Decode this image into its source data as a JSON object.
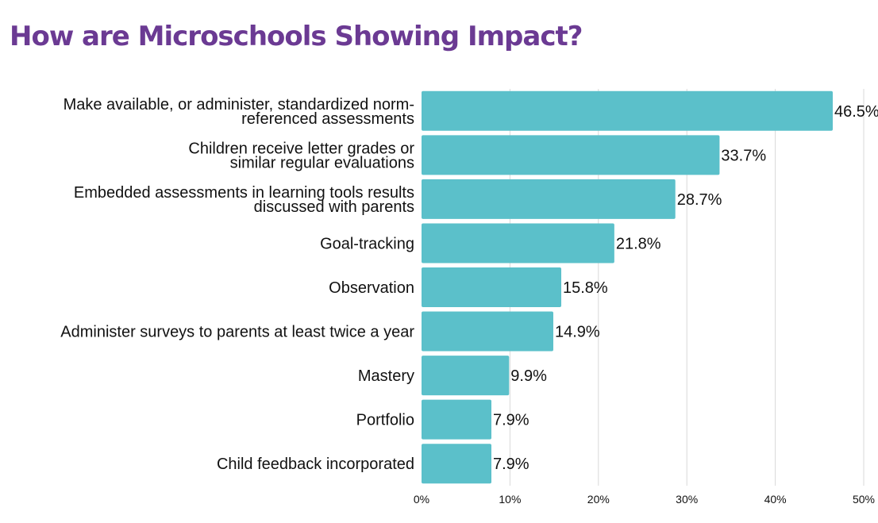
{
  "colors": {
    "title": "#6B3A93",
    "bar": "#5BC0CA",
    "grid": "#D9D9D9",
    "text": "#111111"
  },
  "chart_data": {
    "type": "bar",
    "orientation": "horizontal",
    "title": "How are Microschools Showing Impact?",
    "xlabel": "",
    "ylabel": "",
    "xlim": [
      0,
      50
    ],
    "grid": true,
    "categories": [
      [
        "Make available, or administer, standardized norm-",
        "referenced assessments"
      ],
      [
        "Children receive letter grades or",
        "similar regular evaluations"
      ],
      [
        "Embedded assessments in learning tools results",
        "discussed with parents"
      ],
      [
        "Goal-tracking"
      ],
      [
        "Observation"
      ],
      [
        "Administer surveys to parents at least twice a year"
      ],
      [
        "Mastery"
      ],
      [
        "Portfolio"
      ],
      [
        "Child feedback incorporated"
      ]
    ],
    "values": [
      46.5,
      33.7,
      28.7,
      21.8,
      15.8,
      14.9,
      9.9,
      7.9,
      7.9
    ],
    "value_labels": [
      "46.5%",
      "33.7%",
      "28.7%",
      "21.8%",
      "15.8%",
      "14.9%",
      "9.9%",
      "7.9%",
      "7.9%"
    ],
    "ticks": [
      0,
      10,
      20,
      30,
      40,
      50
    ],
    "tick_labels": [
      "0%",
      "10%",
      "20%",
      "30%",
      "40%",
      "50%"
    ]
  }
}
